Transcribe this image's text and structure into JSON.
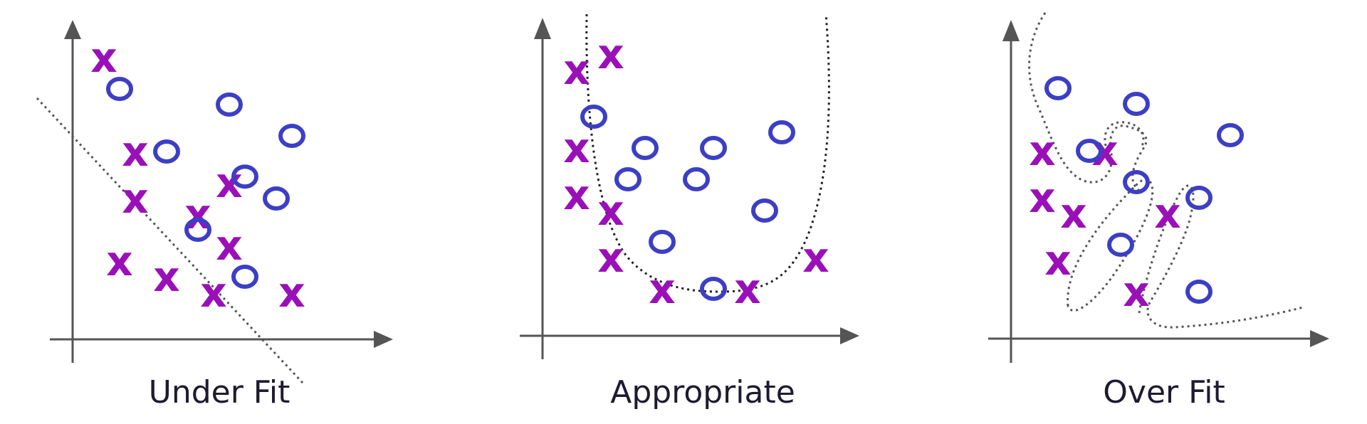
{
  "panels": [
    {
      "id": "underfit",
      "caption": "Under Fit",
      "x_marks": [
        [
          1,
          9
        ],
        [
          2,
          6
        ],
        [
          2,
          4.5
        ],
        [
          4,
          4
        ],
        [
          5,
          5
        ],
        [
          1.5,
          2.5
        ],
        [
          3,
          2
        ],
        [
          5,
          3
        ],
        [
          4.5,
          1.5
        ],
        [
          7,
          1.5
        ]
      ],
      "o_marks": [
        [
          1.5,
          8
        ],
        [
          3,
          6
        ],
        [
          5,
          7.5
        ],
        [
          7,
          6.5
        ],
        [
          5.5,
          5.2
        ],
        [
          6.5,
          4.5
        ],
        [
          4,
          3.5
        ],
        [
          5.5,
          2
        ]
      ]
    },
    {
      "id": "appropriate",
      "caption": "Appropriate",
      "x_marks": [
        [
          1,
          8.5
        ],
        [
          2,
          9
        ],
        [
          1,
          6
        ],
        [
          1,
          4.5
        ],
        [
          2,
          4
        ],
        [
          2,
          2.5
        ],
        [
          3.5,
          1.5
        ],
        [
          6,
          1.5
        ],
        [
          8,
          2.5
        ]
      ],
      "o_marks": [
        [
          1.5,
          7
        ],
        [
          3,
          6
        ],
        [
          2.5,
          5
        ],
        [
          5,
          6
        ],
        [
          7,
          6.5
        ],
        [
          4.5,
          5
        ],
        [
          6.5,
          4
        ],
        [
          3.5,
          3
        ],
        [
          5,
          1.5
        ]
      ]
    },
    {
      "id": "overfit",
      "caption": "Over Fit",
      "x_marks": [
        [
          1,
          6
        ],
        [
          3,
          6
        ],
        [
          1,
          4.5
        ],
        [
          2,
          4
        ],
        [
          5,
          4
        ],
        [
          1.5,
          2.5
        ],
        [
          4,
          1.5
        ]
      ],
      "o_marks": [
        [
          1.5,
          8
        ],
        [
          2.5,
          6
        ],
        [
          4,
          7.5
        ],
        [
          7,
          6.5
        ],
        [
          4,
          5
        ],
        [
          6,
          4.5
        ],
        [
          3.5,
          3
        ],
        [
          6,
          1.5
        ]
      ]
    }
  ],
  "colors": {
    "x_mark": "#9a10b8",
    "o_mark": "#3c3fc4",
    "axis": "#555555",
    "boundary": "#555555"
  }
}
